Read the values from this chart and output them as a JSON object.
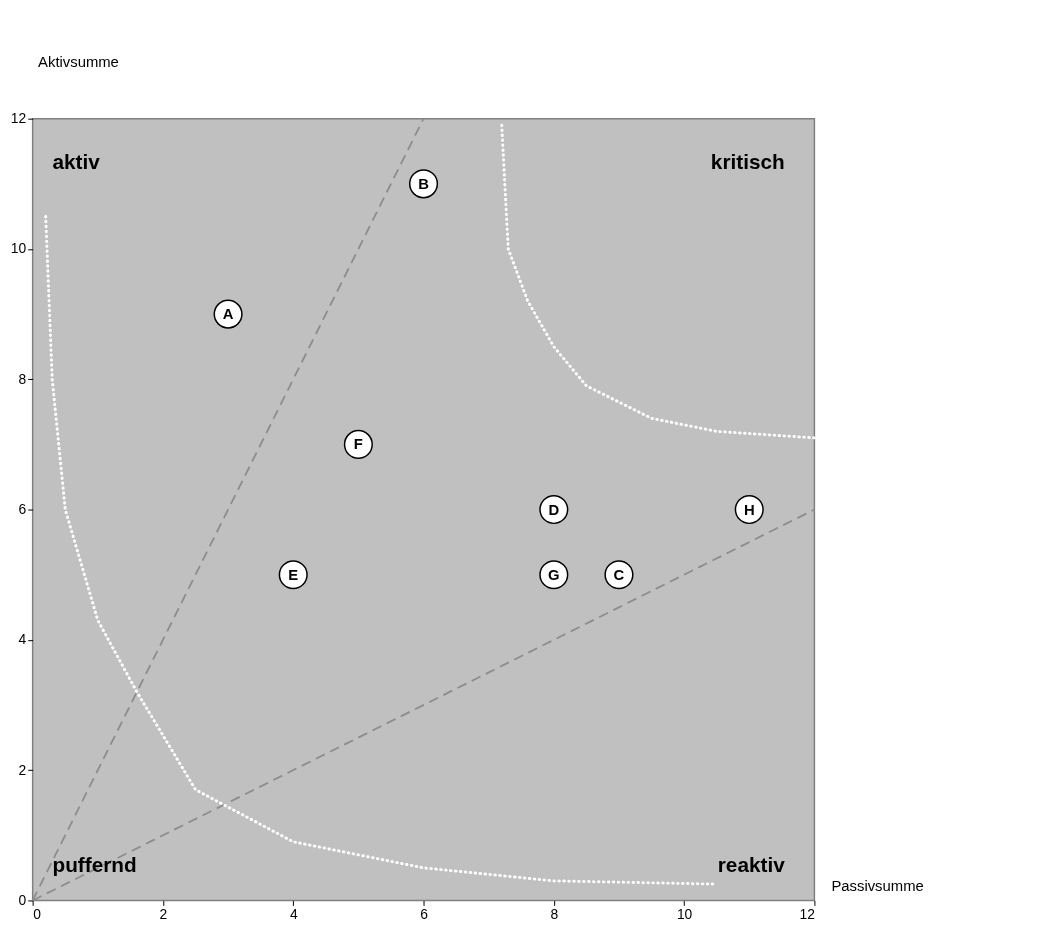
{
  "chart_data": {
    "type": "scatter",
    "xlabel": "Passivsumme",
    "ylabel": "Aktivsumme",
    "xlim": [
      0,
      12
    ],
    "ylim": [
      0,
      12
    ],
    "xticks": [
      0,
      2,
      4,
      6,
      8,
      10,
      12
    ],
    "yticks": [
      0,
      2,
      4,
      6,
      8,
      10,
      12
    ],
    "grid": false,
    "marker": "circle",
    "series": [
      {
        "name": "A",
        "color": "#ffffff",
        "x": [
          3
        ],
        "values": [
          9
        ]
      },
      {
        "name": "B",
        "color": "#ffffff",
        "x": [
          6
        ],
        "values": [
          11
        ]
      },
      {
        "name": "C",
        "color": "#ffffff",
        "x": [
          9
        ],
        "values": [
          5
        ]
      },
      {
        "name": "D",
        "color": "#ffffff",
        "x": [
          8
        ],
        "values": [
          6
        ]
      },
      {
        "name": "E",
        "color": "#ffffff",
        "x": [
          4
        ],
        "values": [
          5
        ]
      },
      {
        "name": "F",
        "color": "#ffffff",
        "x": [
          5
        ],
        "values": [
          7
        ]
      },
      {
        "name": "G",
        "color": "#ffffff",
        "x": [
          8
        ],
        "values": [
          5
        ]
      },
      {
        "name": "H",
        "color": "#ffffff",
        "x": [
          11
        ],
        "values": [
          6
        ]
      },
      {
        "type": "line",
        "marker": "none",
        "color": "#8c8c8c",
        "line_style": "dashed",
        "x": [
          0,
          6
        ],
        "values": [
          0,
          12
        ]
      },
      {
        "type": "line",
        "marker": "none",
        "color": "#8c8c8c",
        "line_style": "dashed",
        "x": [
          0,
          12
        ],
        "values": [
          0,
          6
        ]
      },
      {
        "type": "line",
        "marker": "none",
        "color": "#ffffff",
        "line_style": "dotted",
        "x": [
          0.2,
          0.3,
          0.5,
          1,
          1.6,
          2.5,
          4,
          6,
          8,
          10.5
        ],
        "values": [
          10.5,
          8,
          6,
          4.3,
          3.2,
          1.7,
          0.9,
          0.5,
          0.3,
          0.25
        ]
      },
      {
        "type": "line",
        "marker": "none",
        "color": "#ffffff",
        "line_style": "dotted",
        "x": [
          7.2,
          7.3,
          7.6,
          8,
          8.5,
          9.5,
          10.5,
          12
        ],
        "values": [
          11.9,
          10,
          9.2,
          8.5,
          7.9,
          7.4,
          7.2,
          7.1
        ]
      }
    ],
    "annotations": [
      "aktiv",
      "kritisch",
      "puffernd",
      "reaktiv"
    ]
  }
}
